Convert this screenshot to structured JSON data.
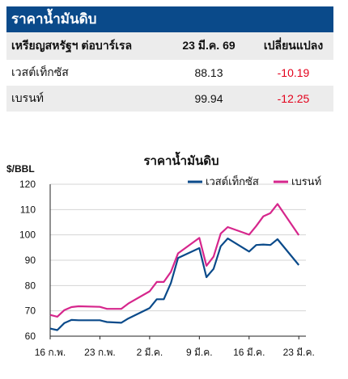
{
  "table": {
    "title": "ราคาน้ำมันดิบ",
    "header": {
      "label": "เหรียญสหรัฐฯ ต่อบาร์เรล",
      "date": "23 มี.ค. 69",
      "change": "เปลี่ยนแปลง"
    },
    "rows": [
      {
        "name": "เวสต์เท็กซัส",
        "price": "88.13",
        "change": "-10.19"
      },
      {
        "name": "เบรนท์",
        "price": "99.94",
        "change": "-12.25"
      }
    ]
  },
  "colors": {
    "title_bg": "#0a4a8a",
    "wti": "#0a4a8a",
    "brent": "#d6268c",
    "negative": "#e3001b",
    "row_shade": "#ececec"
  },
  "chart_data": {
    "type": "line",
    "title": "ราคาน้ำมันดิบ",
    "ylabel": "$/BBL",
    "xlabel": "",
    "ylim": [
      60,
      120
    ],
    "yticks": [
      60,
      70,
      80,
      90,
      100,
      110,
      120
    ],
    "xticks": [
      {
        "label": "16 ก.พ.",
        "x": 0
      },
      {
        "label": "23 ก.พ.",
        "x": 7
      },
      {
        "label": "2 มี.ค.",
        "x": 14
      },
      {
        "label": "9 มี.ค.",
        "x": 21
      },
      {
        "label": "16 มี.ค.",
        "x": 28
      },
      {
        "label": "23 มี.ค.",
        "x": 35
      }
    ],
    "grid": "horizontal",
    "legend_position": "top-right",
    "series": [
      {
        "name": "เวสต์เท็กซัส",
        "points": [
          [
            0,
            63.0
          ],
          [
            1,
            62.4
          ],
          [
            2,
            65.2
          ],
          [
            3,
            66.4
          ],
          [
            4,
            66.3
          ],
          [
            7,
            66.3
          ],
          [
            8,
            65.6
          ],
          [
            10,
            65.3
          ],
          [
            11,
            67.0
          ],
          [
            14,
            71.1
          ],
          [
            15,
            74.6
          ],
          [
            16,
            74.6
          ],
          [
            17,
            81.0
          ],
          [
            18,
            90.9
          ],
          [
            21,
            94.8
          ],
          [
            22,
            83.3
          ],
          [
            23,
            86.6
          ],
          [
            24,
            95.5
          ],
          [
            25,
            98.6
          ],
          [
            28,
            93.4
          ],
          [
            29,
            96.0
          ],
          [
            30,
            96.2
          ],
          [
            31,
            96.0
          ],
          [
            32,
            98.3
          ],
          [
            35,
            88.1
          ]
        ]
      },
      {
        "name": "เบรนท์",
        "points": [
          [
            0,
            68.4
          ],
          [
            1,
            67.7
          ],
          [
            2,
            70.3
          ],
          [
            3,
            71.5
          ],
          [
            4,
            71.8
          ],
          [
            7,
            71.6
          ],
          [
            8,
            70.8
          ],
          [
            10,
            70.8
          ],
          [
            11,
            72.9
          ],
          [
            14,
            77.7
          ],
          [
            15,
            81.4
          ],
          [
            16,
            81.4
          ],
          [
            17,
            85.4
          ],
          [
            18,
            92.7
          ],
          [
            21,
            98.8
          ],
          [
            22,
            87.8
          ],
          [
            23,
            91.4
          ],
          [
            24,
            100.5
          ],
          [
            25,
            103.1
          ],
          [
            28,
            100.1
          ],
          [
            29,
            103.5
          ],
          [
            30,
            107.3
          ],
          [
            31,
            108.6
          ],
          [
            32,
            112.2
          ],
          [
            35,
            99.9
          ]
        ]
      }
    ]
  }
}
